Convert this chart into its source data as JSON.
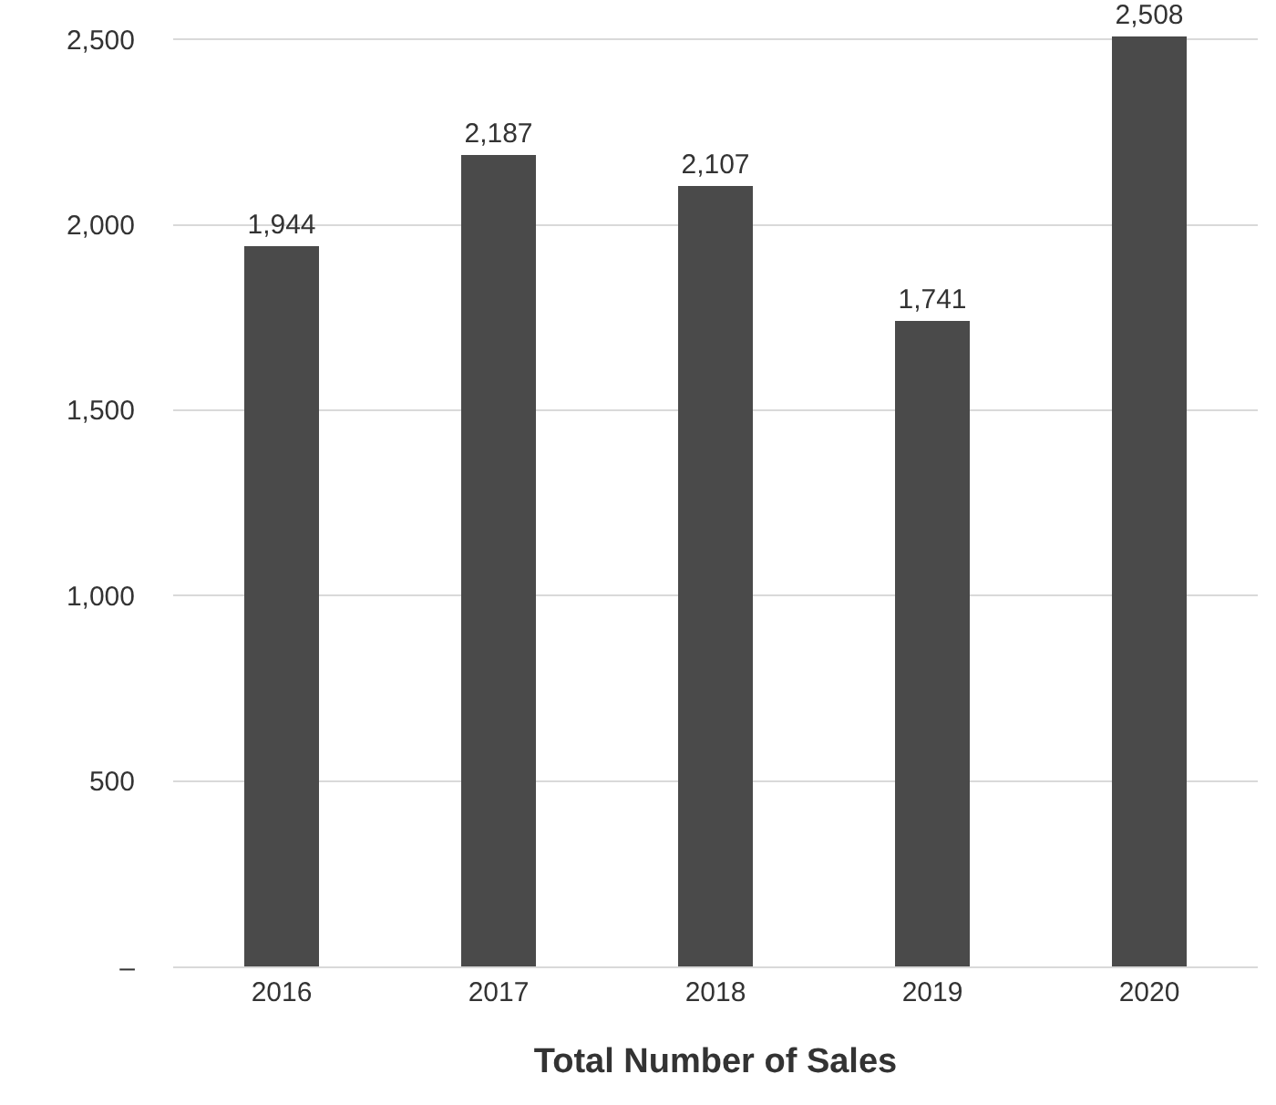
{
  "chart_data": {
    "type": "bar",
    "xlabel": "Total Number of Sales",
    "categories": [
      "2016",
      "2017",
      "2018",
      "2019",
      "2020"
    ],
    "values": [
      1944,
      2187,
      2107,
      1741,
      2508
    ],
    "value_labels": [
      "1,944",
      "2,187",
      "2,107",
      "1,741",
      "2,508"
    ],
    "color": "#4a4a4a",
    "ylim": [
      0,
      2508
    ],
    "yticks": [
      {
        "value": 0,
        "label": "–"
      },
      {
        "value": 500,
        "label": "500"
      },
      {
        "value": 1000,
        "label": "1,000"
      },
      {
        "value": 1500,
        "label": "1,500"
      },
      {
        "value": 2000,
        "label": "2,000"
      },
      {
        "value": 2500,
        "label": "2,500"
      }
    ],
    "grid": "y"
  }
}
